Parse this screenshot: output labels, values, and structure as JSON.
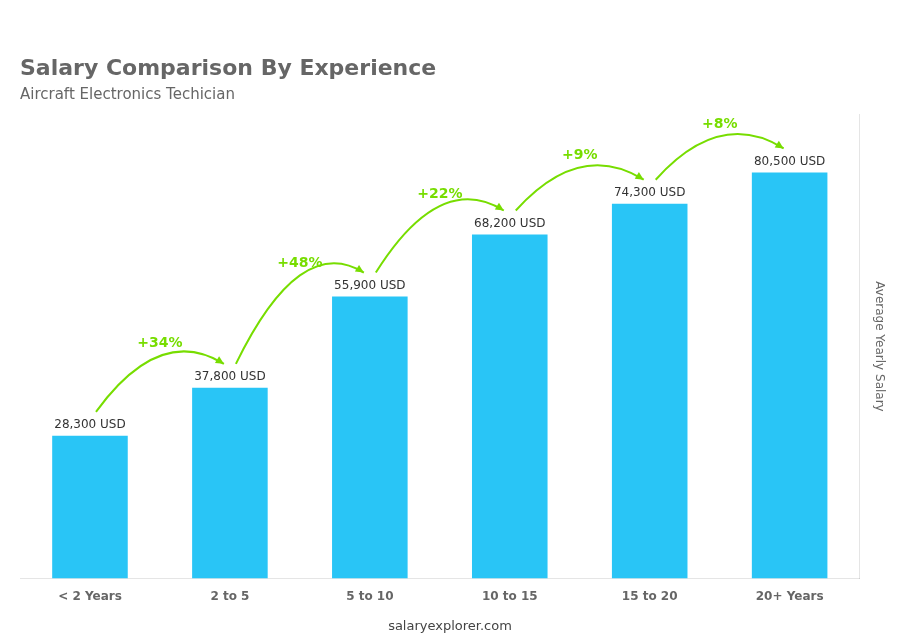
{
  "chart_data": {
    "type": "bar",
    "title": "Salary Comparison By Experience",
    "subtitle": "Aircraft Electronics Techician",
    "categories": [
      "< 2 Years",
      "2 to 5",
      "5 to 10",
      "10 to 15",
      "15 to 20",
      "20+ Years"
    ],
    "values": [
      28300,
      37800,
      55900,
      68200,
      74300,
      80500
    ],
    "value_labels": [
      "28,300 USD",
      "37,800 USD",
      "55,900 USD",
      "68,200 USD",
      "74,300 USD",
      "80,500 USD"
    ],
    "data_labels": true,
    "color": "#29C5F6",
    "ylabel": "Average Yearly Salary",
    "ylim": [
      0,
      92000
    ],
    "tick_labels": "x",
    "grid": false,
    "annotations": [
      {
        "text": "+34%",
        "from": "< 2 Years",
        "to": "2 to 5",
        "color": "#77DD00"
      },
      {
        "text": "+48%",
        "from": "2 to 5",
        "to": "5 to 10",
        "color": "#77DD00"
      },
      {
        "text": "+22%",
        "from": "5 to 10",
        "to": "10 to 15",
        "color": "#77DD00"
      },
      {
        "text": "+9%",
        "from": "10 to 15",
        "to": "15 to 20",
        "color": "#77DD00"
      },
      {
        "text": "+8%",
        "from": "15 to 20",
        "to": "20+ Years",
        "color": "#77DD00"
      }
    ],
    "footer": "salaryexplorer.com"
  }
}
